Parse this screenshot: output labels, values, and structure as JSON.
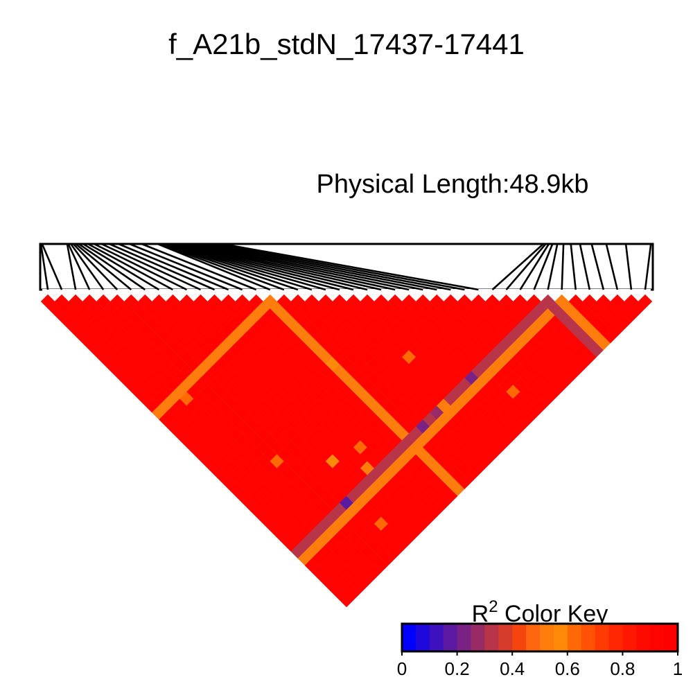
{
  "chart_data": {
    "type": "heatmap",
    "title": "f_A21b_stdN_17437-17441",
    "physical_length_label": "Physical Length:48.9kb",
    "color_key": {
      "title_base": "R",
      "title_sup": "2",
      "title_rest": " Color Key",
      "range": [
        0,
        1
      ],
      "tick_values": [
        0,
        0.2,
        0.4,
        0.6,
        0.8,
        1
      ],
      "tick_labels": [
        "0",
        "0.2",
        "0.4",
        "0.6",
        "0.8",
        "1"
      ],
      "colors": [
        "#0000ff",
        "#1e08dc",
        "#3d11bf",
        "#5b1aa1",
        "#7a2284",
        "#982b66",
        "#b73449",
        "#d53c2b",
        "#f4450d",
        "#ff6610",
        "#ff7d0c",
        "#ff8a09",
        "#ff6a07",
        "#ff5205",
        "#ff3a03",
        "#ff2702",
        "#ff1801",
        "#ff0a00",
        "#ff0300",
        "#ff0000"
      ]
    },
    "n_snps": 44,
    "snp_fractional_positions": [
      0.0,
      0.002,
      0.043,
      0.045,
      0.049,
      0.053,
      0.057,
      0.062,
      0.069,
      0.077,
      0.087,
      0.099,
      0.112,
      0.127,
      0.145,
      0.165,
      0.191,
      0.194,
      0.197,
      0.2,
      0.203,
      0.207,
      0.212,
      0.218,
      0.225,
      0.232,
      0.241,
      0.25,
      0.261,
      0.272,
      0.284,
      0.297,
      0.822,
      0.826,
      0.831,
      0.837,
      0.845,
      0.855,
      0.867,
      0.882,
      0.901,
      0.925,
      0.957,
      0.998
    ],
    "r2_default": 0.93,
    "r2_rows": [
      {
        "snp": 36,
        "value": 0.33
      },
      {
        "snp": 37,
        "value": 0.53
      },
      {
        "snp": 16,
        "value": 0.52
      }
    ],
    "r2_cells": [
      {
        "i": 25,
        "j": 36,
        "value": 0.2
      },
      {
        "i": 20,
        "j": 36,
        "value": 0.25
      },
      {
        "i": 18,
        "j": 36,
        "value": 0.22
      },
      {
        "i": 7,
        "j": 36,
        "value": 0.18
      },
      {
        "i": 21,
        "j": 36,
        "value": 0.5
      },
      {
        "i": 24,
        "j": 36,
        "value": 0.3
      },
      {
        "i": 16,
        "j": 25,
        "value": 0.55
      },
      {
        "i": 9,
        "j": 32,
        "value": 0.55
      },
      {
        "i": 11,
        "j": 35,
        "value": 0.5
      },
      {
        "i": 8,
        "j": 40,
        "value": 0.6
      },
      {
        "i": 12,
        "j": 33,
        "value": 0.6
      },
      {
        "i": 22,
        "j": 30,
        "value": 0.62
      },
      {
        "i": 5,
        "j": 28,
        "value": 0.6
      },
      {
        "i": 3,
        "j": 17,
        "value": 0.62
      },
      {
        "i": 27,
        "j": 40,
        "value": 0.62
      }
    ]
  }
}
